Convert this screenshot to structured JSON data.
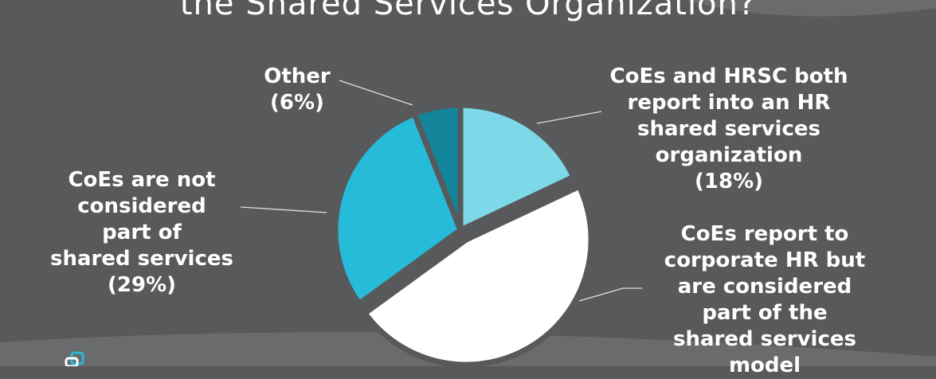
{
  "title": "the Shared Services Organization?",
  "chart_data": {
    "type": "pie",
    "start_angle": 0,
    "slices": [
      {
        "label_lines": [
          "CoEs and HRSC both",
          "report into an HR",
          "shared services",
          "organization",
          "(18%)"
        ],
        "value": 18,
        "color": "#7dd8e8",
        "exploded": false
      },
      {
        "label_lines": [
          "CoEs report to",
          "corporate HR but",
          "are considered",
          "part of the",
          "shared services",
          "model"
        ],
        "value": 47,
        "color": "#ffffff",
        "exploded": true
      },
      {
        "label_lines": [
          "CoEs are not",
          "considered",
          "part of",
          "shared services",
          "(29%)"
        ],
        "value": 29,
        "color": "#26bbd8",
        "exploded": false
      },
      {
        "label_lines": [
          "Other",
          "(6%)"
        ],
        "value": 6,
        "color": "#13859b",
        "exploded": false
      }
    ]
  },
  "colors": {
    "background": "#58595b",
    "swoosh": "#6a6b6d",
    "leader_line": "#e0e0e0",
    "logo": "#26bbd8"
  }
}
